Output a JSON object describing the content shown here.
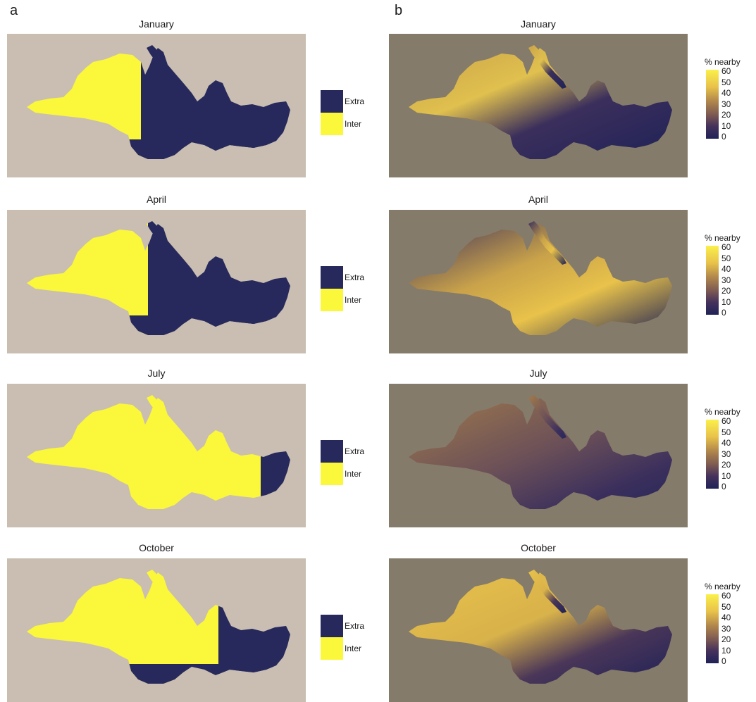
{
  "panel_a_label": "a",
  "panel_b_label": "b",
  "months": [
    "January",
    "April",
    "July",
    "October"
  ],
  "legend_a": {
    "extra": "Extra",
    "inter": "Inter"
  },
  "legend_b": {
    "title": "% nearby",
    "ticks": [
      "60",
      "50",
      "40",
      "30",
      "20",
      "10",
      "0"
    ]
  },
  "colors": {
    "extra": "#27295c",
    "inter": "#fbf73a",
    "bg_a": "#c9beb1",
    "bg_b": "#857b6a",
    "scale_high": "#fbf04a",
    "scale_low": "#1f2257"
  }
}
